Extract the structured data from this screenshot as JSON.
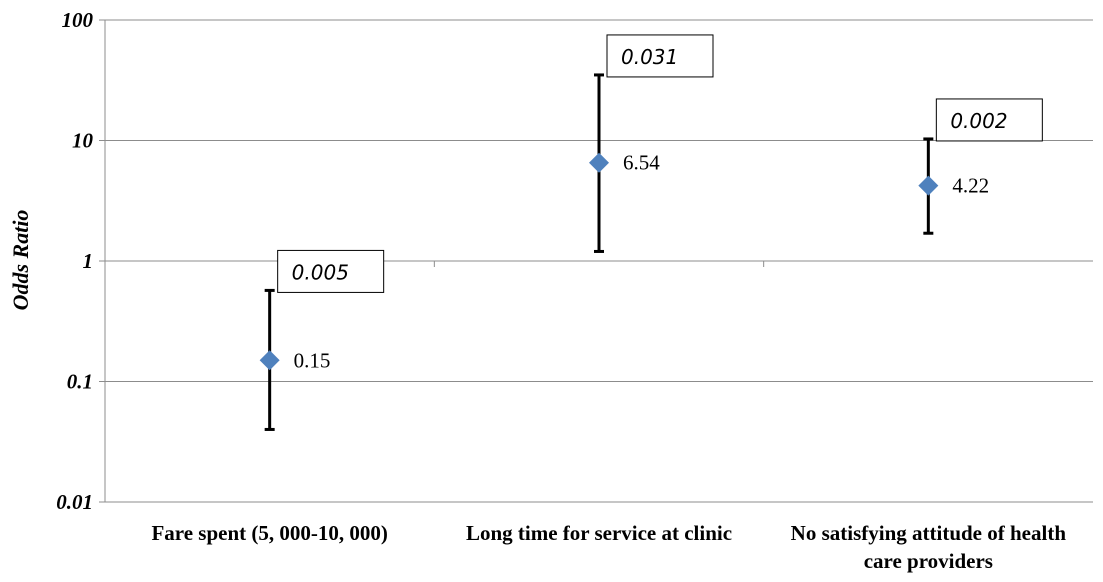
{
  "chart_data": {
    "type": "scatter",
    "ylabel": "Odds Ratio",
    "yscale": "log",
    "ylim": [
      0.01,
      100
    ],
    "y_ticks": [
      "100",
      "10",
      "1",
      "0.1",
      "0.01"
    ],
    "y_tick_values": [
      100,
      10,
      1,
      0.1,
      0.01
    ],
    "grid": true,
    "marker": "diamond",
    "marker_color": "#4f81bd",
    "categories": [
      [
        "Fare  spent (5, 000-10, 000)"
      ],
      [
        "Long time for service at clinic"
      ],
      [
        "No satisfying attitude of health",
        "care providers"
      ]
    ],
    "points": [
      {
        "value": 0.15,
        "value_label": "0.15",
        "ci_low": 0.04,
        "ci_high": 0.57,
        "p_value": "0.005"
      },
      {
        "value": 6.54,
        "value_label": "6.54",
        "ci_low": 1.2,
        "ci_high": 35,
        "p_value": "0.031"
      },
      {
        "value": 4.22,
        "value_label": "4.22",
        "ci_low": 1.7,
        "ci_high": 10.3,
        "p_value": "0.002"
      }
    ]
  }
}
